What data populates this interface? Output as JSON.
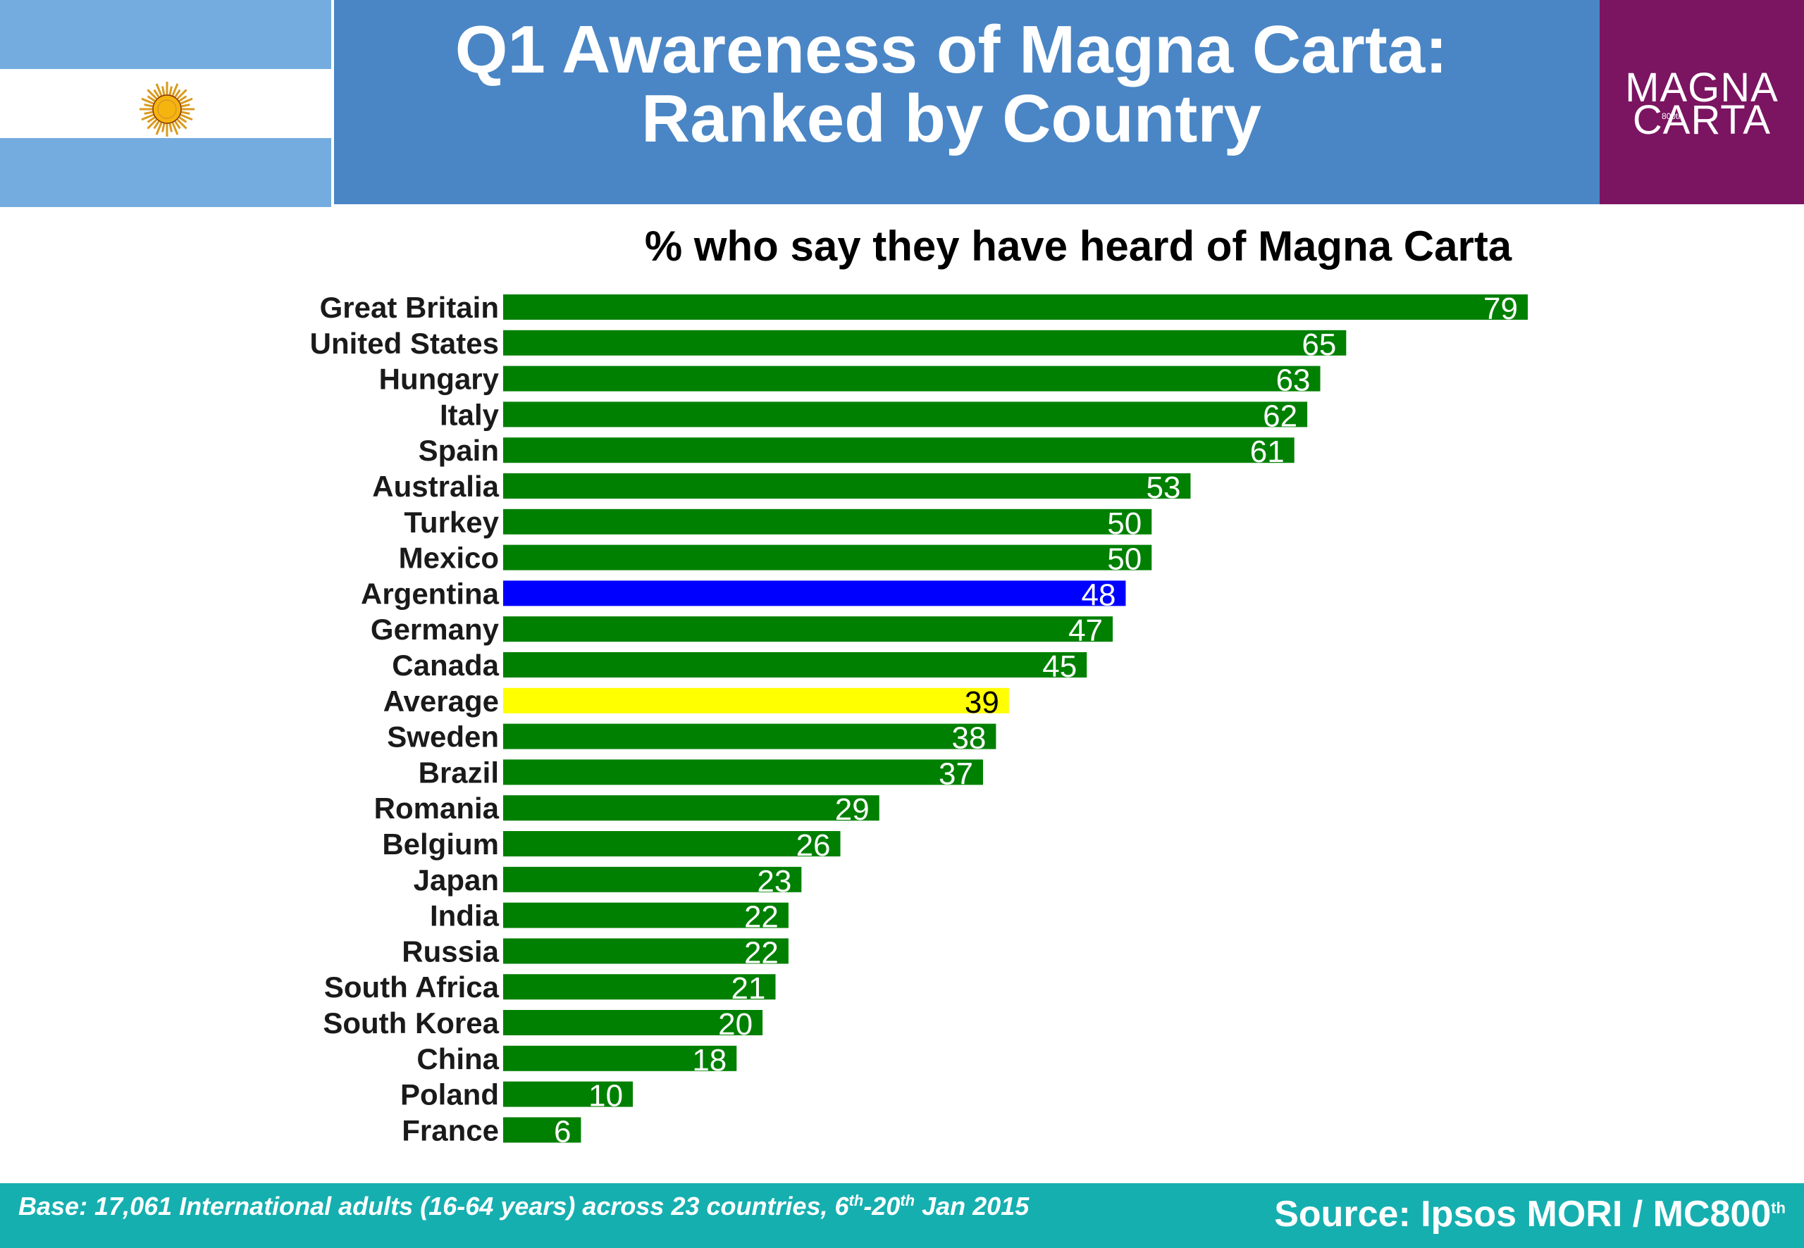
{
  "header": {
    "title_line1": "Q1 Awareness of Magna Carta:",
    "title_line2": "Ranked by Country",
    "flag_icon": "argentina-flag-icon",
    "logo": {
      "line1": "MAGNA",
      "line2": "CARTA",
      "badge": "800th"
    }
  },
  "colors": {
    "header_bg": "#4a86c5",
    "logo_bg": "#7b1461",
    "bar_default": "#008000",
    "bar_highlight": "#0000ff",
    "bar_average": "#ffff00",
    "footer_bg": "#16afb0"
  },
  "chart_data": {
    "type": "bar",
    "orientation": "horizontal",
    "title": "% who say they have heard of Magna Carta",
    "categories": [
      "Great Britain",
      "United States",
      "Hungary",
      "Italy",
      "Spain",
      "Australia",
      "Turkey",
      "Mexico",
      "Argentina",
      "Germany",
      "Canada",
      "Average",
      "Sweden",
      "Brazil",
      "Romania",
      "Belgium",
      "Japan",
      "India",
      "Russia",
      "South Africa",
      "South Korea",
      "China",
      "Poland",
      "France"
    ],
    "values": [
      79,
      65,
      63,
      62,
      61,
      53,
      50,
      50,
      48,
      47,
      45,
      39,
      38,
      37,
      29,
      26,
      23,
      22,
      22,
      21,
      20,
      18,
      10,
      6
    ],
    "highlight": {
      "Argentina": "#0000ff",
      "Average": "#ffff00"
    },
    "default_color": "#008000",
    "xlim": [
      0,
      80
    ],
    "data_labels": true,
    "grid": false,
    "legend": "none"
  },
  "footer": {
    "base_main": "Base: 17,061 International adults (16-64 years) across 23 countries, 6",
    "base_sup1": "th",
    "base_mid": "-20",
    "base_sup2": "th",
    "base_end": " Jan 2015",
    "source_main": "Source: Ipsos MORI / MC800",
    "source_sup": "th"
  }
}
